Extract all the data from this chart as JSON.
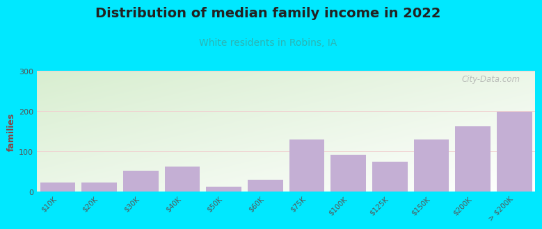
{
  "title": "Distribution of median family income in 2022",
  "subtitle": "White residents in Robins, IA",
  "categories": [
    "$10K",
    "$20K",
    "$30K",
    "$40K",
    "$50K",
    "$60K",
    "$75K",
    "$100K",
    "$125K",
    "$150K",
    "$200K",
    "> $200K"
  ],
  "values": [
    22,
    22,
    52,
    62,
    12,
    30,
    130,
    92,
    75,
    130,
    162,
    198
  ],
  "bar_color": "#c4afd4",
  "title_color": "#222222",
  "subtitle_color": "#2ab5b5",
  "ylabel": "families",
  "ylim": [
    0,
    300
  ],
  "yticks": [
    0,
    100,
    200,
    300
  ],
  "background_outer": "#00e8ff",
  "watermark": "City-Data.com",
  "title_fontsize": 14,
  "subtitle_fontsize": 10,
  "ylabel_fontsize": 9
}
